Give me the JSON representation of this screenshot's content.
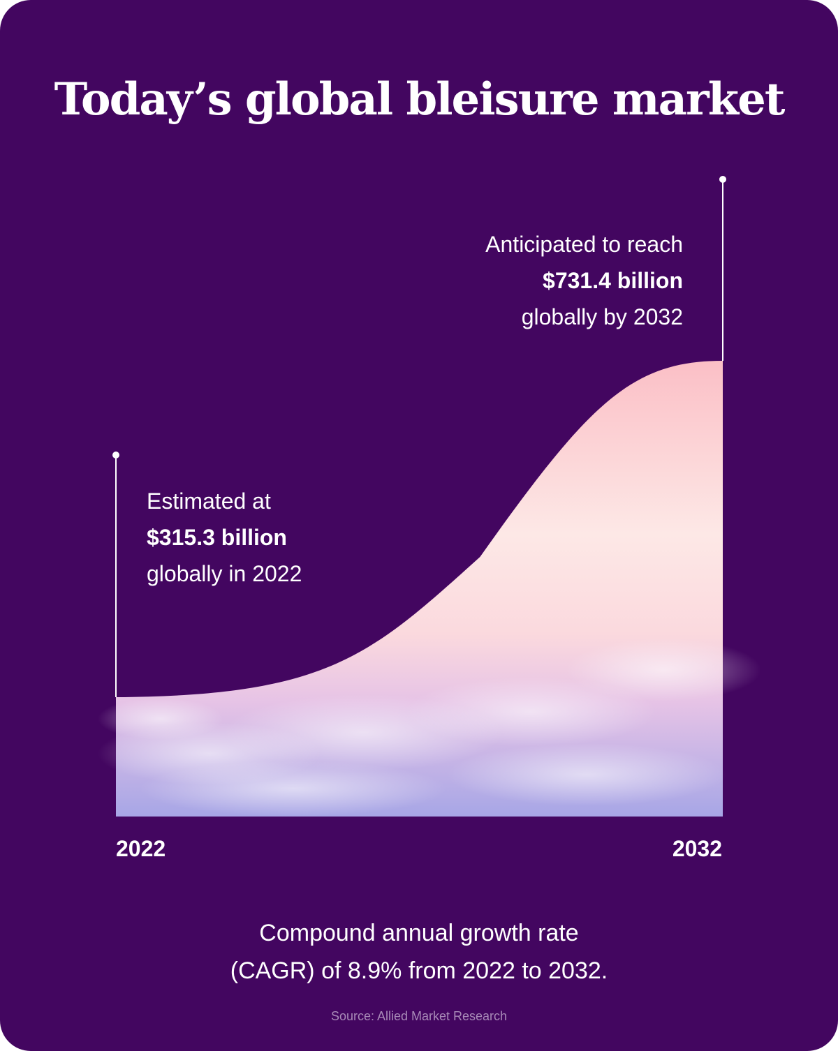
{
  "title": "Today’s global bleisure market",
  "chart_data": {
    "type": "area",
    "title": "Today’s global bleisure market",
    "unit": "billion USD",
    "x": [
      2022,
      2032
    ],
    "values": [
      315.3,
      731.4
    ],
    "categories": [
      "2022",
      "2032"
    ],
    "annotations": [
      {
        "year": 2022,
        "line1": "Estimated at",
        "value_text": "$315.3 billion",
        "line3": "globally in 2022"
      },
      {
        "year": 2032,
        "line1": "Anticipated to reach",
        "value_text": "$731.4 billion",
        "line3": "globally by 2032"
      }
    ],
    "note": {
      "line1": "Compound annual growth rate",
      "line2": "(CAGR) of 8.9% from 2022 to 2032."
    },
    "source": "Source: Allied Market Research"
  },
  "colors": {
    "background": "#430660",
    "text": "#ffffff",
    "fill_top": "#fbc4c8",
    "fill_mid": "#fde3df",
    "fill_bottom": "#a9a8e8"
  }
}
